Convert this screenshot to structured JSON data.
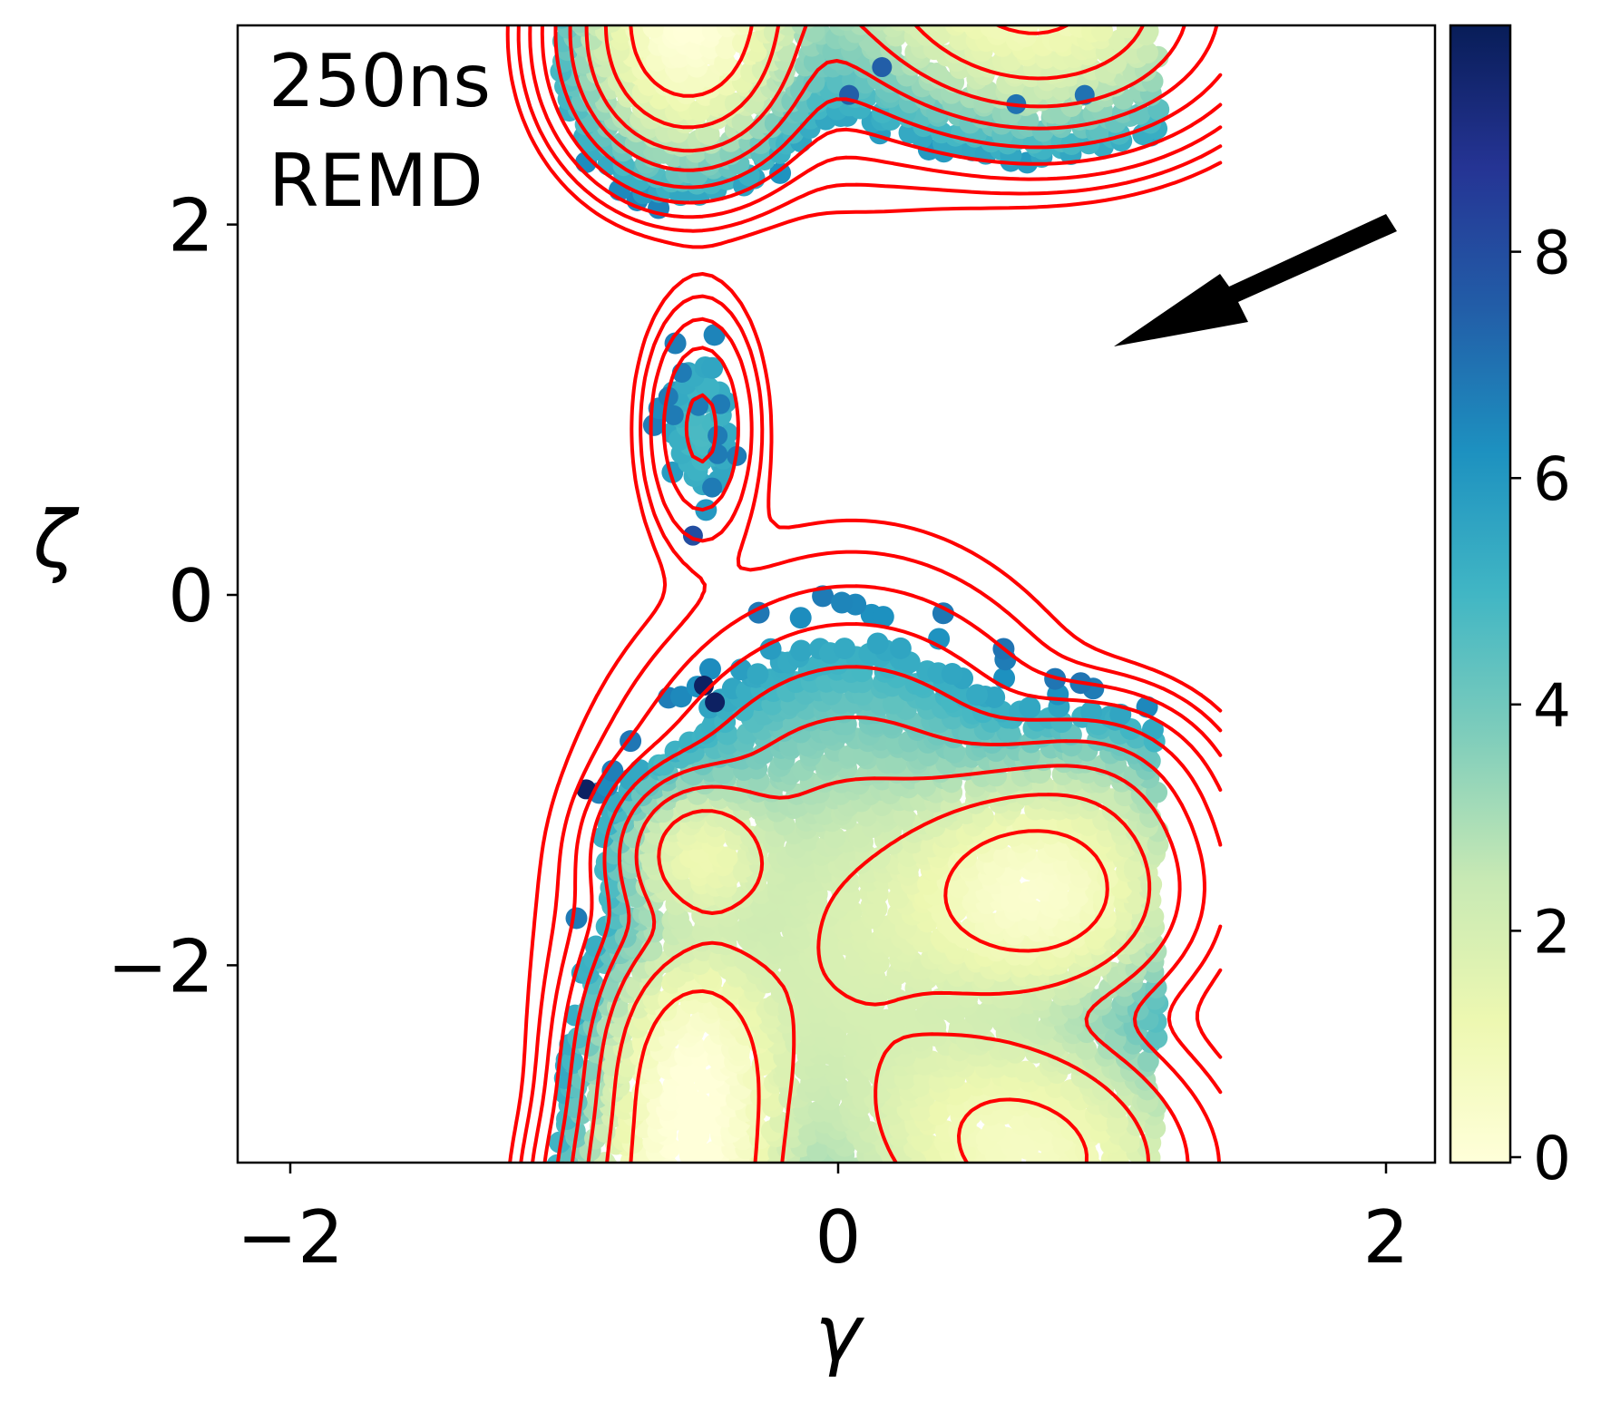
{
  "chart_data": {
    "type": "scatter",
    "annotation_lines": [
      "250ns",
      "REMD"
    ],
    "xlabel": "γ",
    "ylabel": "ζ",
    "xlim": [
      -2.19,
      2.18
    ],
    "ylim": [
      -3.06,
      3.07
    ],
    "xticks": [
      -2,
      0,
      2
    ],
    "xtick_labels": [
      "−2",
      "0",
      "2"
    ],
    "yticks": [
      -2,
      0,
      2
    ],
    "ytick_labels": [
      "−2",
      "0",
      "2"
    ],
    "grid": false,
    "colorbar": {
      "colormap": "YlGnBu",
      "range": [
        0,
        10
      ],
      "ticks": [
        0,
        2,
        4,
        6,
        8
      ],
      "tick_labels": [
        "0",
        "2",
        "4",
        "6",
        "8"
      ]
    },
    "contour_color": "#ff0000",
    "contour_levels": [
      1,
      2,
      3,
      4,
      5,
      6,
      7,
      8,
      9
    ],
    "density_basins": [
      {
        "x": -0.52,
        "y": -2.65,
        "sx": 0.16,
        "sy": 0.38,
        "weight": 1.0
      },
      {
        "x": -0.5,
        "y": -1.4,
        "sx": 0.14,
        "sy": 0.2,
        "weight": 0.35
      },
      {
        "x": 0.72,
        "y": -1.6,
        "sx": 0.26,
        "sy": 0.3,
        "weight": 0.75
      },
      {
        "x": 0.05,
        "y": -1.9,
        "sx": 0.35,
        "sy": 0.7,
        "weight": 0.22
      },
      {
        "x": 0.6,
        "y": -2.8,
        "sx": 0.3,
        "sy": 0.3,
        "weight": 0.3
      },
      {
        "x": 0.95,
        "y": -1.1,
        "sx": 0.2,
        "sy": 0.25,
        "weight": 0.06
      },
      {
        "x": -0.55,
        "y": 3.0,
        "sx": 0.18,
        "sy": 0.3,
        "weight": 0.7
      },
      {
        "x": 0.75,
        "y": 3.15,
        "sx": 0.3,
        "sy": 0.3,
        "weight": 0.4
      },
      {
        "x": -0.5,
        "y": 0.9,
        "sx": 0.1,
        "sy": 0.32,
        "weight": 0.025
      }
    ],
    "isolated_points": [
      {
        "x": -0.57,
        "y": 1.2,
        "e": 6.8
      },
      {
        "x": -0.62,
        "y": 1.07,
        "e": 6.8
      },
      {
        "x": -0.6,
        "y": 0.97,
        "e": 6.8
      },
      {
        "x": -0.51,
        "y": 1.02,
        "e": 6.8
      },
      {
        "x": -0.43,
        "y": 1.03,
        "e": 6.8
      },
      {
        "x": -0.44,
        "y": 0.86,
        "e": 6.8
      },
      {
        "x": -0.44,
        "y": 0.76,
        "e": 6.8
      },
      {
        "x": -0.37,
        "y": 0.75,
        "e": 6.8
      },
      {
        "x": -0.46,
        "y": 0.58,
        "e": 6.8
      },
      {
        "x": -0.53,
        "y": 0.32,
        "e": 8.0
      },
      {
        "x": -0.49,
        "y": -0.49,
        "e": 9.8
      },
      {
        "x": -0.45,
        "y": -0.58,
        "e": 9.8
      },
      {
        "x": -0.92,
        "y": -1.05,
        "e": 9.8
      },
      {
        "x": 0.04,
        "y": 2.7,
        "e": 7.5
      },
      {
        "x": 0.16,
        "y": 2.85,
        "e": 7.5
      },
      {
        "x": 0.65,
        "y": 2.65,
        "e": 7.0
      },
      {
        "x": 0.9,
        "y": 2.7,
        "e": 7.0
      }
    ]
  }
}
